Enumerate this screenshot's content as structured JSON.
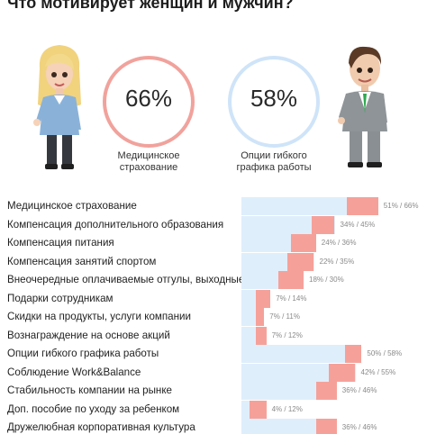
{
  "header": {
    "title": "Что мотивирует женщин и мужчин?"
  },
  "colors": {
    "women": "#f5a19a",
    "men": "#dfeefb",
    "women_ring": "#f1a29c",
    "men_ring": "#cfe4f8"
  },
  "rings": [
    {
      "value": "66%",
      "caption_lines": [
        "Медицинское",
        "страхование"
      ]
    },
    {
      "value": "58%",
      "caption_lines": [
        "Опции гибкого",
        "графика работы"
      ]
    }
  ],
  "chart_data": {
    "type": "bar",
    "orientation": "horizontal",
    "title": "Что мотивирует женщин и мужчин?",
    "xlim": [
      0,
      100
    ],
    "categories": [
      "Медицинское страхование",
      "Компенсация дополнительного образования",
      "Компенсация питания",
      "Компенсация занятий спортом",
      "Внеочередные оплачиваемые отгулы, выходные",
      "Подарки сотрудникам",
      "Скидки на продукты, услуги компании",
      "Вознаграждение на основе акций",
      "Опции гибкого графика работы",
      "Соблюдение Work&Balance",
      "Стабильность компании на рынке",
      "Доп. пособие по уходу за ребенком",
      "Дружелюбная корпоративная культура"
    ],
    "series": [
      {
        "values": [
          51,
          34,
          24,
          22,
          18,
          7,
          7,
          7,
          50,
          42,
          36,
          4,
          36
        ]
      },
      {
        "values": [
          66,
          45,
          36,
          35,
          30,
          14,
          11,
          12,
          58,
          55,
          46,
          12,
          46
        ]
      }
    ],
    "value_labels": [
      "51% / 66%",
      "34% / 45%",
      "24% / 36%",
      "22% / 35%",
      "18% / 30%",
      "7% / 14%",
      "7% / 11%",
      "7% / 12%",
      "50% / 58%",
      "42% / 55%",
      "36% / 46%",
      "4% / 12%",
      "36% / 46%"
    ]
  }
}
